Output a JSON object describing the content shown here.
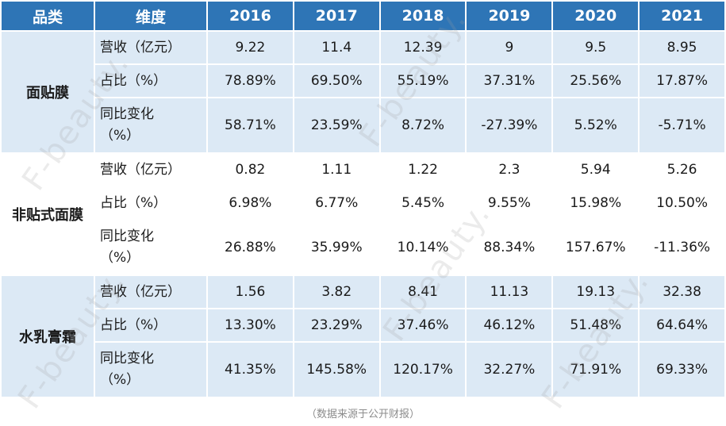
{
  "chart_data": {
    "type": "table",
    "columns": [
      "品类",
      "维度",
      "2016",
      "2017",
      "2018",
      "2019",
      "2020",
      "2021"
    ],
    "groups": [
      {
        "category": "面贴膜",
        "rows": [
          {
            "dimension": "营收（亿元）",
            "values": [
              "9.22",
              "11.4",
              "12.39",
              "9",
              "9.5",
              "8.95"
            ]
          },
          {
            "dimension": "占比（%）",
            "values": [
              "78.89%",
              "69.50%",
              "55.19%",
              "37.31%",
              "25.56%",
              "17.87%"
            ]
          },
          {
            "dimension": "同比变化\n（%）",
            "values": [
              "58.71%",
              "23.59%",
              "8.72%",
              "-27.39%",
              "5.52%",
              "-5.71%"
            ]
          }
        ]
      },
      {
        "category": "非贴式面膜",
        "rows": [
          {
            "dimension": "营收（亿元）",
            "values": [
              "0.82",
              "1.11",
              "1.22",
              "2.3",
              "5.94",
              "5.26"
            ]
          },
          {
            "dimension": "占比（%）",
            "values": [
              "6.98%",
              "6.77%",
              "5.45%",
              "9.55%",
              "15.98%",
              "10.50%"
            ]
          },
          {
            "dimension": "同比变化\n（%）",
            "values": [
              "26.88%",
              "35.99%",
              "10.14%",
              "88.34%",
              "157.67%",
              "-11.36%"
            ]
          }
        ]
      },
      {
        "category": "水乳膏霜",
        "rows": [
          {
            "dimension": "营收（亿元）",
            "values": [
              "1.56",
              "3.82",
              "8.41",
              "11.13",
              "19.13",
              "32.38"
            ]
          },
          {
            "dimension": "占比（%）",
            "values": [
              "13.30%",
              "23.29%",
              "37.46%",
              "46.12%",
              "51.48%",
              "64.64%"
            ]
          },
          {
            "dimension": "同比变化\n（%）",
            "values": [
              "41.35%",
              "145.58%",
              "120.17%",
              "32.27%",
              "71.91%",
              "69.33%"
            ]
          }
        ]
      }
    ]
  },
  "footer": {
    "text": "（数据来源于公开财报）"
  },
  "watermark": {
    "text": "F-beauty."
  },
  "colors": {
    "header_bg": "#2E75B6",
    "header_text": "#FFFFFF",
    "row_blue": "#DCE9F5",
    "row_white": "#FFFFFF",
    "text": "#1A1A1A",
    "note": "#8C8C8C",
    "watermark": "#9E9E9E"
  }
}
